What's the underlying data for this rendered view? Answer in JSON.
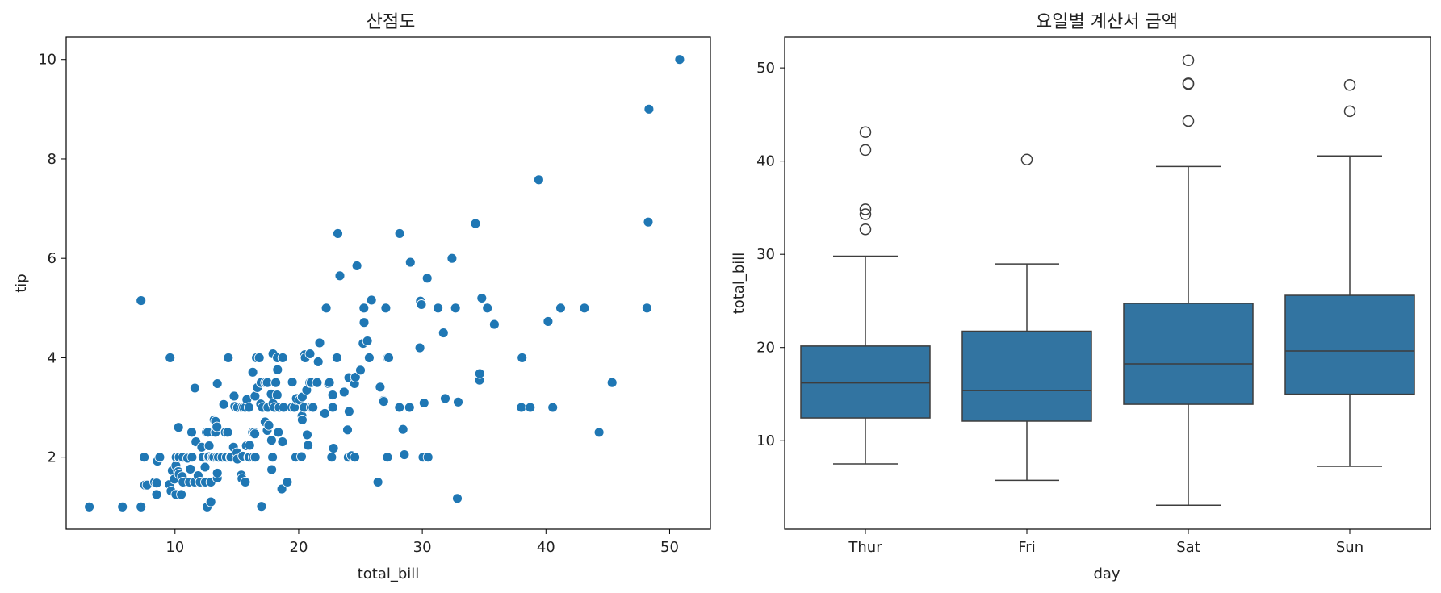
{
  "chart_data": [
    {
      "type": "scatter",
      "title": "산점도",
      "xlabel": "total_bill",
      "ylabel": "tip",
      "xlim": [
        1.2,
        53.3
      ],
      "ylim": [
        0.55,
        10.45
      ],
      "xticks": [
        10,
        20,
        30,
        40,
        50
      ],
      "yticks": [
        2,
        4,
        6,
        8,
        10
      ],
      "color": "#1f77b4",
      "points": [
        [
          3.07,
          1.0
        ],
        [
          5.75,
          1.0
        ],
        [
          7.25,
          1.0
        ],
        [
          7.25,
          5.15
        ],
        [
          7.51,
          2.0
        ],
        [
          7.56,
          1.44
        ],
        [
          7.74,
          1.44
        ],
        [
          8.35,
          1.5
        ],
        [
          8.51,
          1.25
        ],
        [
          8.52,
          1.48
        ],
        [
          8.58,
          1.92
        ],
        [
          8.77,
          2.0
        ],
        [
          9.55,
          1.45
        ],
        [
          9.6,
          4.0
        ],
        [
          9.68,
          1.32
        ],
        [
          9.78,
          1.73
        ],
        [
          9.94,
          1.56
        ],
        [
          10.07,
          1.25
        ],
        [
          10.07,
          1.83
        ],
        [
          10.09,
          2.0
        ],
        [
          10.27,
          1.71
        ],
        [
          10.29,
          2.6
        ],
        [
          10.33,
          2.0
        ],
        [
          10.34,
          1.66
        ],
        [
          10.34,
          2.0
        ],
        [
          10.51,
          1.25
        ],
        [
          10.59,
          1.61
        ],
        [
          10.63,
          2.0
        ],
        [
          10.65,
          1.5
        ],
        [
          11.02,
          1.98
        ],
        [
          11.17,
          1.5
        ],
        [
          11.24,
          1.76
        ],
        [
          11.35,
          2.5
        ],
        [
          11.38,
          2.0
        ],
        [
          11.59,
          1.5
        ],
        [
          11.61,
          3.39
        ],
        [
          11.69,
          2.31
        ],
        [
          11.87,
          1.63
        ],
        [
          12.03,
          1.5
        ],
        [
          12.16,
          2.2
        ],
        [
          12.26,
          2.0
        ],
        [
          12.43,
          1.8
        ],
        [
          12.46,
          1.5
        ],
        [
          12.54,
          2.5
        ],
        [
          12.6,
          1.0
        ],
        [
          12.66,
          2.5
        ],
        [
          12.69,
          2.0
        ],
        [
          12.74,
          2.01
        ],
        [
          12.76,
          2.23
        ],
        [
          12.9,
          1.1
        ],
        [
          12.9,
          1.5
        ],
        [
          13.0,
          2.0
        ],
        [
          13.03,
          2.0
        ],
        [
          13.13,
          2.0
        ],
        [
          13.16,
          2.75
        ],
        [
          13.27,
          2.5
        ],
        [
          13.28,
          2.72
        ],
        [
          13.37,
          2.0
        ],
        [
          13.39,
          2.61
        ],
        [
          13.42,
          1.58
        ],
        [
          13.42,
          1.68
        ],
        [
          13.42,
          3.48
        ],
        [
          13.51,
          2.0
        ],
        [
          13.81,
          2.0
        ],
        [
          13.94,
          3.06
        ],
        [
          14.07,
          2.5
        ],
        [
          14.15,
          2.0
        ],
        [
          14.26,
          2.5
        ],
        [
          14.31,
          4.0
        ],
        [
          14.48,
          2.0
        ],
        [
          14.52,
          2.0
        ],
        [
          14.73,
          2.2
        ],
        [
          14.78,
          3.23
        ],
        [
          14.83,
          3.02
        ],
        [
          15.01,
          2.09
        ],
        [
          15.04,
          1.96
        ],
        [
          15.06,
          3.0
        ],
        [
          15.36,
          1.64
        ],
        [
          15.38,
          3.0
        ],
        [
          15.42,
          1.57
        ],
        [
          15.48,
          2.02
        ],
        [
          15.53,
          3.0
        ],
        [
          15.69,
          1.5
        ],
        [
          15.69,
          3.0
        ],
        [
          15.77,
          2.23
        ],
        [
          15.81,
          3.16
        ],
        [
          15.95,
          2.0
        ],
        [
          15.98,
          3.0
        ],
        [
          16.0,
          2.0
        ],
        [
          16.04,
          2.24
        ],
        [
          16.27,
          2.5
        ],
        [
          16.29,
          3.71
        ],
        [
          16.31,
          2.0
        ],
        [
          16.4,
          2.5
        ],
        [
          16.45,
          2.47
        ],
        [
          16.47,
          3.23
        ],
        [
          16.49,
          2.0
        ],
        [
          16.58,
          4.0
        ],
        [
          16.66,
          3.4
        ],
        [
          16.82,
          4.0
        ],
        [
          16.93,
          3.07
        ],
        [
          16.97,
          3.5
        ],
        [
          16.99,
          1.01
        ],
        [
          17.07,
          3.0
        ],
        [
          17.29,
          2.71
        ],
        [
          17.31,
          3.5
        ],
        [
          17.46,
          2.54
        ],
        [
          17.47,
          3.5
        ],
        [
          17.51,
          3.0
        ],
        [
          17.59,
          2.64
        ],
        [
          17.78,
          3.27
        ],
        [
          17.81,
          2.34
        ],
        [
          17.82,
          1.75
        ],
        [
          17.89,
          2.0
        ],
        [
          17.92,
          4.08
        ],
        [
          17.92,
          3.08
        ],
        [
          18.04,
          3.0
        ],
        [
          18.15,
          3.5
        ],
        [
          18.24,
          3.76
        ],
        [
          18.26,
          3.25
        ],
        [
          18.28,
          4.0
        ],
        [
          18.29,
          3.76
        ],
        [
          18.35,
          2.5
        ],
        [
          18.43,
          3.0
        ],
        [
          18.64,
          1.36
        ],
        [
          18.69,
          2.31
        ],
        [
          18.71,
          4.0
        ],
        [
          18.78,
          3.0
        ],
        [
          19.08,
          1.5
        ],
        [
          19.44,
          3.0
        ],
        [
          19.49,
          3.51
        ],
        [
          19.65,
          3.0
        ],
        [
          19.77,
          2.0
        ],
        [
          19.81,
          3.16
        ],
        [
          19.82,
          3.18
        ],
        [
          20.08,
          3.15
        ],
        [
          20.23,
          2.01
        ],
        [
          20.27,
          2.83
        ],
        [
          20.29,
          2.75
        ],
        [
          20.29,
          3.21
        ],
        [
          20.45,
          3.0
        ],
        [
          20.49,
          4.06
        ],
        [
          20.53,
          4.0
        ],
        [
          20.65,
          3.35
        ],
        [
          20.69,
          2.45
        ],
        [
          20.76,
          2.24
        ],
        [
          20.9,
          3.5
        ],
        [
          20.92,
          4.08
        ],
        [
          21.01,
          3.5
        ],
        [
          21.01,
          3.0
        ],
        [
          21.16,
          3.0
        ],
        [
          21.5,
          3.5
        ],
        [
          21.58,
          3.92
        ],
        [
          21.7,
          4.3
        ],
        [
          22.12,
          2.88
        ],
        [
          22.23,
          5.0
        ],
        [
          22.42,
          3.48
        ],
        [
          22.49,
          3.5
        ],
        [
          22.67,
          2.0
        ],
        [
          22.75,
          3.25
        ],
        [
          22.76,
          3.0
        ],
        [
          22.82,
          2.18
        ],
        [
          23.1,
          4.0
        ],
        [
          23.17,
          6.5
        ],
        [
          23.33,
          5.65
        ],
        [
          23.68,
          3.31
        ],
        [
          23.95,
          2.55
        ],
        [
          24.01,
          2.0
        ],
        [
          24.06,
          3.6
        ],
        [
          24.08,
          2.92
        ],
        [
          24.27,
          2.03
        ],
        [
          24.52,
          3.48
        ],
        [
          24.55,
          2.0
        ],
        [
          24.59,
          3.61
        ],
        [
          24.71,
          5.85
        ],
        [
          25.0,
          3.75
        ],
        [
          25.21,
          4.29
        ],
        [
          25.28,
          5.0
        ],
        [
          25.29,
          4.71
        ],
        [
          25.56,
          4.34
        ],
        [
          25.71,
          4.0
        ],
        [
          25.89,
          5.16
        ],
        [
          26.41,
          1.5
        ],
        [
          26.59,
          3.41
        ],
        [
          26.86,
          3.14
        ],
        [
          26.88,
          3.12
        ],
        [
          27.05,
          5.0
        ],
        [
          27.18,
          2.0
        ],
        [
          27.2,
          4.0
        ],
        [
          27.28,
          4.0
        ],
        [
          28.15,
          3.0
        ],
        [
          28.17,
          6.5
        ],
        [
          28.44,
          2.56
        ],
        [
          28.55,
          2.05
        ],
        [
          28.97,
          3.0
        ],
        [
          29.03,
          5.92
        ],
        [
          29.8,
          4.2
        ],
        [
          29.85,
          5.14
        ],
        [
          29.93,
          5.07
        ],
        [
          30.06,
          2.0
        ],
        [
          30.14,
          3.09
        ],
        [
          30.4,
          5.6
        ],
        [
          30.46,
          2.0
        ],
        [
          31.27,
          5.0
        ],
        [
          31.71,
          4.5
        ],
        [
          31.85,
          3.18
        ],
        [
          32.4,
          6.0
        ],
        [
          32.68,
          5.0
        ],
        [
          32.83,
          1.17
        ],
        [
          32.9,
          3.11
        ],
        [
          34.3,
          6.7
        ],
        [
          34.63,
          3.55
        ],
        [
          34.65,
          3.68
        ],
        [
          34.81,
          5.2
        ],
        [
          35.26,
          5.0
        ],
        [
          35.83,
          4.67
        ],
        [
          38.01,
          3.0
        ],
        [
          38.07,
          4.0
        ],
        [
          38.73,
          3.0
        ],
        [
          39.42,
          7.58
        ],
        [
          40.17,
          4.73
        ],
        [
          40.55,
          3.0
        ],
        [
          41.19,
          5.0
        ],
        [
          43.11,
          5.0
        ],
        [
          44.3,
          2.5
        ],
        [
          45.35,
          3.5
        ],
        [
          48.17,
          5.0
        ],
        [
          48.27,
          6.73
        ],
        [
          48.33,
          9.0
        ],
        [
          50.81,
          10.0
        ]
      ]
    },
    {
      "type": "box",
      "title": "요일별 계산서 금액",
      "xlabel": "day",
      "ylabel": "total_bill",
      "ylim": [
        0.5,
        53.3
      ],
      "yticks": [
        10,
        20,
        30,
        40,
        50
      ],
      "color": "#3274a1",
      "categories": [
        "Thur",
        "Fri",
        "Sat",
        "Sun"
      ],
      "boxes": [
        {
          "name": "Thur",
          "whislo": 7.51,
          "q1": 12.44,
          "med": 16.2,
          "q3": 20.16,
          "whishi": 29.8,
          "fliers": [
            32.68,
            34.3,
            34.83,
            41.19,
            43.11
          ]
        },
        {
          "name": "Fri",
          "whislo": 5.75,
          "q1": 12.1,
          "med": 15.38,
          "q3": 21.75,
          "whishi": 28.97,
          "fliers": [
            40.17
          ]
        },
        {
          "name": "Sat",
          "whislo": 3.07,
          "q1": 13.91,
          "med": 18.24,
          "q3": 24.74,
          "whishi": 39.42,
          "fliers": [
            44.3,
            48.27,
            48.33,
            50.81
          ]
        },
        {
          "name": "Sun",
          "whislo": 7.25,
          "q1": 14.99,
          "med": 19.63,
          "q3": 25.6,
          "whishi": 40.55,
          "fliers": [
            45.35,
            48.17
          ]
        }
      ]
    }
  ]
}
